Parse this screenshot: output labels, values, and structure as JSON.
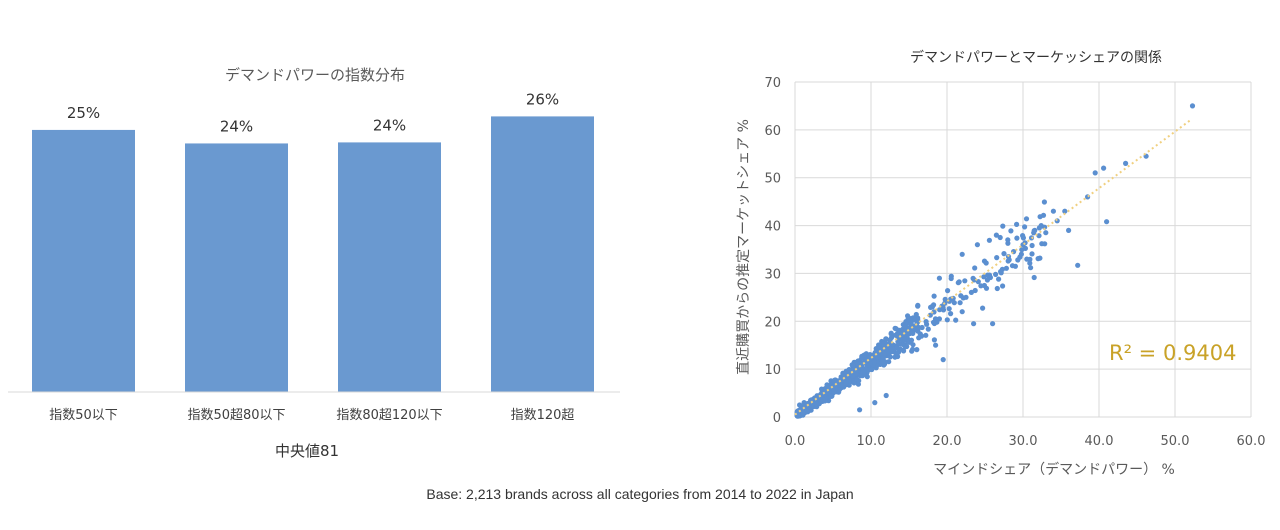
{
  "chart_data": [
    {
      "type": "bar",
      "title": "デマンドパワーの指数分布",
      "categories": [
        "指数50以下",
        "指数50超80以下",
        "指数80超120以下",
        "指数120超"
      ],
      "values": [
        25,
        24,
        24,
        26
      ],
      "value_labels": [
        "25%",
        "24%",
        "24%",
        "26%"
      ],
      "series": [
        {
          "values": [
            25.2,
            23.9,
            24.0,
            26.5
          ]
        }
      ],
      "ylim": [
        0,
        30
      ],
      "xlabel": "中央値81",
      "bar_color": "#6a99d0",
      "grid": false
    },
    {
      "type": "scatter",
      "title": "デマンドパワーとマーケッシェアの関係",
      "xlabel": "マインドシェア（デマンドパワー） %",
      "ylabel": "直近購買からの推定マーケットシェア %",
      "xlim": [
        0,
        60
      ],
      "ylim": [
        0,
        70
      ],
      "x_ticks": [
        "0.0",
        "10.0",
        "20.0",
        "30.0",
        "40.0",
        "50.0",
        "60.0"
      ],
      "y_ticks": [
        "0",
        "10",
        "20",
        "30",
        "40",
        "50",
        "60",
        "70"
      ],
      "grid": true,
      "point_color": "#5b8fd0",
      "trendline": {
        "x": [
          0,
          52
        ],
        "y": [
          0.5,
          62
        ],
        "color": "#f0d080"
      },
      "r_squared": "R² = 0.9404",
      "r_squared_color": "#c9a227",
      "points_outliers": [
        {
          "x": 52.3,
          "y": 65
        },
        {
          "x": 46.2,
          "y": 54.5
        },
        {
          "x": 43.5,
          "y": 53
        },
        {
          "x": 40.6,
          "y": 52
        },
        {
          "x": 39.5,
          "y": 51
        },
        {
          "x": 38.5,
          "y": 46
        },
        {
          "x": 41.0,
          "y": 40.8
        },
        {
          "x": 37.2,
          "y": 31.7
        },
        {
          "x": 35.5,
          "y": 43
        },
        {
          "x": 34.0,
          "y": 43
        },
        {
          "x": 34.5,
          "y": 41
        },
        {
          "x": 36.0,
          "y": 39
        },
        {
          "x": 33.0,
          "y": 38.5
        },
        {
          "x": 30.0,
          "y": 36
        },
        {
          "x": 27.0,
          "y": 37.5
        },
        {
          "x": 28.0,
          "y": 37
        },
        {
          "x": 26.5,
          "y": 38
        },
        {
          "x": 24.0,
          "y": 36
        },
        {
          "x": 22.0,
          "y": 34
        },
        {
          "x": 30.5,
          "y": 33
        },
        {
          "x": 29.0,
          "y": 31.5
        },
        {
          "x": 26.0,
          "y": 19.5
        },
        {
          "x": 23.5,
          "y": 19.5
        },
        {
          "x": 22.0,
          "y": 22
        },
        {
          "x": 19.0,
          "y": 29
        },
        {
          "x": 19.5,
          "y": 12
        },
        {
          "x": 18.5,
          "y": 15
        },
        {
          "x": 12.0,
          "y": 4.5
        },
        {
          "x": 10.5,
          "y": 3
        },
        {
          "x": 8.5,
          "y": 1.5
        },
        {
          "x": 1.2,
          "y": 3
        },
        {
          "x": 0.6,
          "y": 2.5
        }
      ]
    }
  ],
  "footnote": "Base: 2,213 brands across all categories from 2014 to 2022 in Japan"
}
